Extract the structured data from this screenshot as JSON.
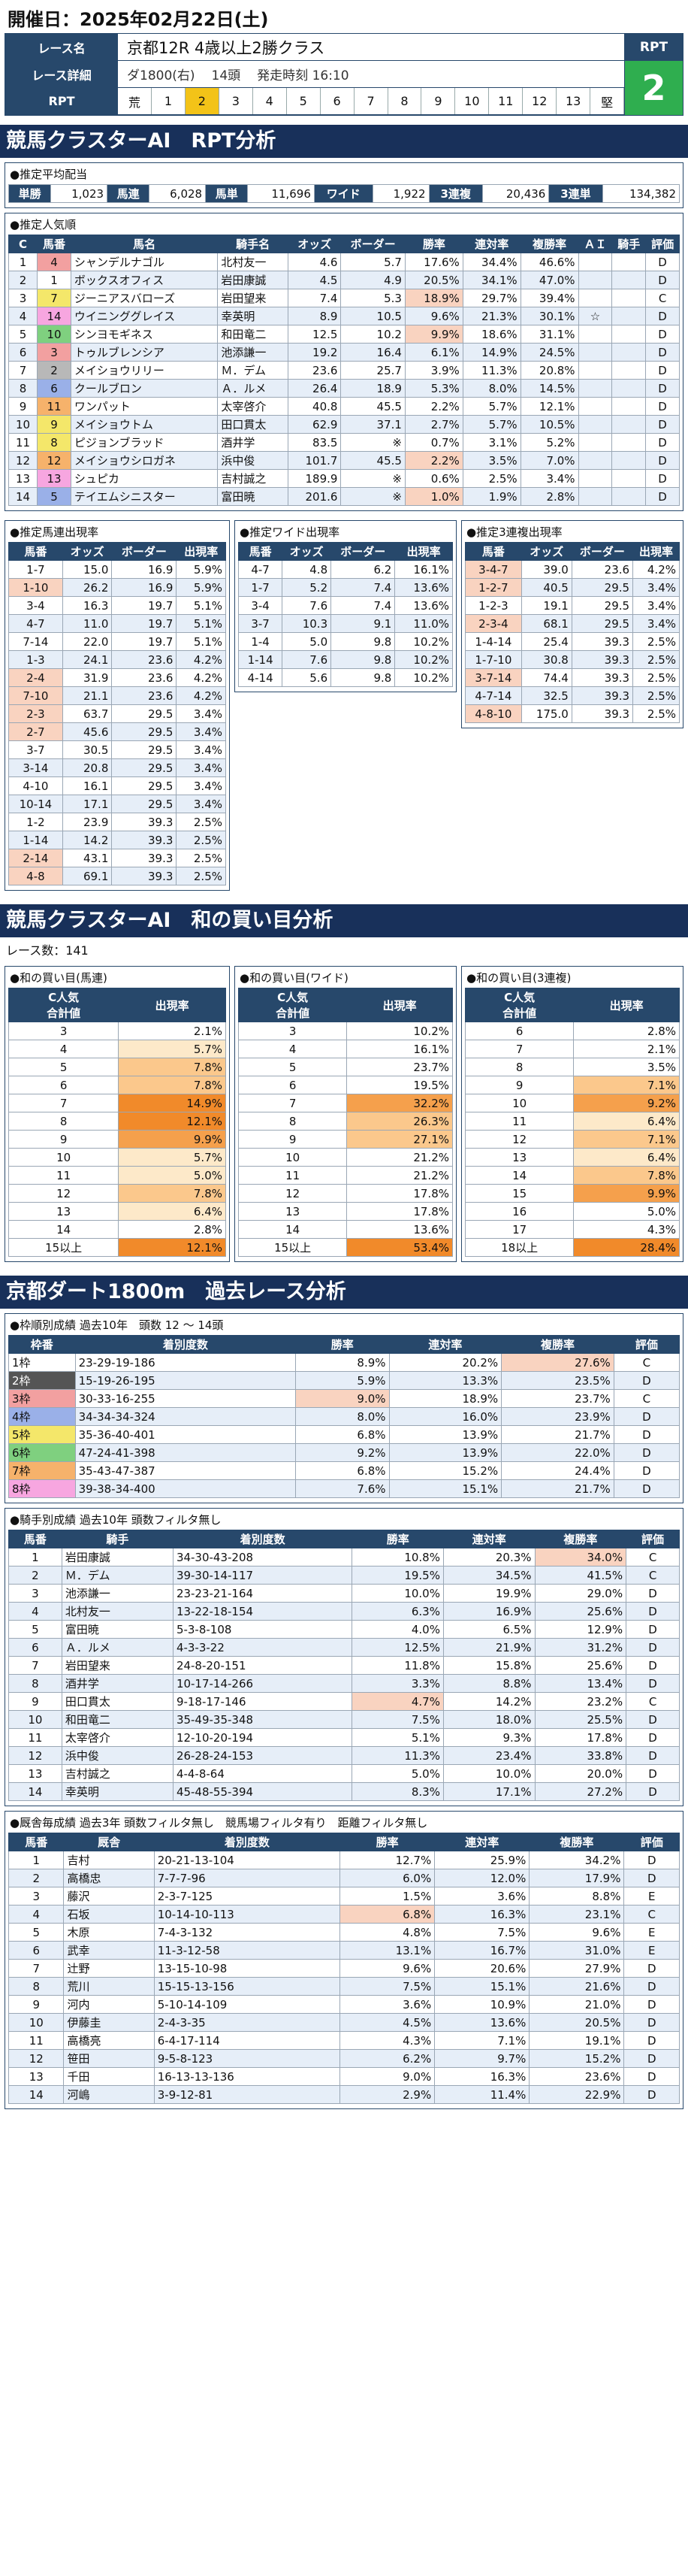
{
  "race": {
    "date": "開催日：2025年02月22日(土)",
    "name_label": "レース名",
    "name": "京都12R 4歳以上2勝クラス",
    "detail_label": "レース詳細",
    "course": "ダ1800(右)",
    "runners": "14頭",
    "start": "発走時刻 16:10",
    "rpt_label": "RPT",
    "rpt_cells": [
      "荒",
      "1",
      "2",
      "3",
      "4",
      "5",
      "6",
      "7",
      "8",
      "9",
      "10",
      "11",
      "12",
      "13",
      "堅"
    ],
    "rpt_active_index": 2,
    "rpt_value": "2"
  },
  "colors": {
    "accent": "#27486b",
    "header": "#18305a",
    "rpt": "#2fae4f",
    "active": "#f3c318"
  },
  "sec1": {
    "title": "競馬クラスターAI　RPT分析"
  },
  "payout": {
    "title": "●推定平均配当",
    "items": [
      {
        "label": "単勝",
        "value": "1,023"
      },
      {
        "label": "馬連",
        "value": "6,028"
      },
      {
        "label": "馬単",
        "value": "11,696"
      },
      {
        "label": "ワイド",
        "value": "1,922"
      },
      {
        "label": "3連複",
        "value": "20,436"
      },
      {
        "label": "3連単",
        "value": "134,382"
      }
    ]
  },
  "popularity": {
    "title": "●推定人気順",
    "headers": [
      "C",
      "馬番",
      "馬名",
      "騎手名",
      "オッズ",
      "ボーダー",
      "勝率",
      "連対率",
      "複勝率",
      "ＡＩ",
      "騎手",
      "評価"
    ],
    "rows": [
      [
        "1",
        "4",
        "シャンデルナゴル",
        "北村友一",
        "4.6",
        "5.7",
        "17.6%",
        "34.4%",
        "46.6%",
        "",
        "",
        "D"
      ],
      [
        "2",
        "1",
        "ボックスオフィス",
        "岩田康誠",
        "4.5",
        "4.9",
        "20.5%",
        "34.1%",
        "47.0%",
        "",
        "",
        "D"
      ],
      [
        "3",
        "7",
        "ジーニアスバローズ",
        "岩田望来",
        "7.4",
        "5.3",
        "18.9%",
        "29.7%",
        "39.4%",
        "",
        "",
        "C"
      ],
      [
        "4",
        "14",
        "ウイニンググレイス",
        "幸英明",
        "8.9",
        "10.5",
        "9.6%",
        "21.3%",
        "30.1%",
        "☆",
        "",
        "D"
      ],
      [
        "5",
        "10",
        "シンヨモギネス",
        "和田竜二",
        "12.5",
        "10.2",
        "9.9%",
        "18.6%",
        "31.1%",
        "",
        "",
        "D"
      ],
      [
        "6",
        "3",
        "トゥルブレンシア",
        "池添謙一",
        "19.2",
        "16.4",
        "6.1%",
        "14.9%",
        "24.5%",
        "",
        "",
        "D"
      ],
      [
        "7",
        "2",
        "メイショウリリー",
        "Ｍ．デム",
        "23.6",
        "25.7",
        "3.9%",
        "11.3%",
        "20.8%",
        "",
        "",
        "D"
      ],
      [
        "8",
        "6",
        "クールブロン",
        "Ａ．ルメ",
        "26.4",
        "18.9",
        "5.3%",
        "8.0%",
        "14.5%",
        "",
        "",
        "D"
      ],
      [
        "9",
        "11",
        "ワンパット",
        "太宰啓介",
        "40.8",
        "45.5",
        "2.2%",
        "5.7%",
        "12.1%",
        "",
        "",
        "D"
      ],
      [
        "10",
        "9",
        "メイショウトム",
        "田口貫太",
        "62.9",
        "37.1",
        "2.7%",
        "5.7%",
        "10.5%",
        "",
        "",
        "D"
      ],
      [
        "11",
        "8",
        "ピジョンブラッド",
        "酒井学",
        "83.5",
        "※",
        "0.7%",
        "3.1%",
        "5.2%",
        "",
        "",
        "D"
      ],
      [
        "12",
        "12",
        "メイショウシロガネ",
        "浜中俊",
        "101.7",
        "45.5",
        "2.2%",
        "3.5%",
        "7.0%",
        "",
        "",
        "D"
      ],
      [
        "13",
        "13",
        "シュピカ",
        "吉村誠之",
        "189.9",
        "※",
        "0.6%",
        "2.5%",
        "3.4%",
        "",
        "",
        "D"
      ],
      [
        "14",
        "5",
        "テイエムシニスター",
        "富田暁",
        "201.6",
        "※",
        "1.0%",
        "1.9%",
        "2.8%",
        "",
        "",
        "D"
      ]
    ]
  },
  "umaren": {
    "title": "●推定馬連出現率",
    "headers": [
      "馬番",
      "オッズ",
      "ボーダー",
      "出現率"
    ],
    "rows": [
      [
        "1-7",
        "15.0",
        "16.9",
        "5.9%"
      ],
      [
        "1-10",
        "26.2",
        "16.9",
        "5.9%"
      ],
      [
        "3-4",
        "16.3",
        "19.7",
        "5.1%"
      ],
      [
        "4-7",
        "11.0",
        "19.7",
        "5.1%"
      ],
      [
        "7-14",
        "22.0",
        "19.7",
        "5.1%"
      ],
      [
        "1-3",
        "24.1",
        "23.6",
        "4.2%"
      ],
      [
        "2-4",
        "31.9",
        "23.6",
        "4.2%"
      ],
      [
        "7-10",
        "21.1",
        "23.6",
        "4.2%"
      ],
      [
        "2-3",
        "63.7",
        "29.5",
        "3.4%"
      ],
      [
        "2-7",
        "45.6",
        "29.5",
        "3.4%"
      ],
      [
        "3-7",
        "30.5",
        "29.5",
        "3.4%"
      ],
      [
        "3-14",
        "20.8",
        "29.5",
        "3.4%"
      ],
      [
        "4-10",
        "16.1",
        "29.5",
        "3.4%"
      ],
      [
        "10-14",
        "17.1",
        "29.5",
        "3.4%"
      ],
      [
        "1-2",
        "23.9",
        "39.3",
        "2.5%"
      ],
      [
        "1-14",
        "14.2",
        "39.3",
        "2.5%"
      ],
      [
        "2-14",
        "43.1",
        "39.3",
        "2.5%"
      ],
      [
        "4-8",
        "69.1",
        "39.3",
        "2.5%"
      ]
    ]
  },
  "wide": {
    "title": "●推定ワイド出現率",
    "headers": [
      "馬番",
      "オッズ",
      "ボーダー",
      "出現率"
    ],
    "rows": [
      [
        "4-7",
        "4.8",
        "6.2",
        "16.1%"
      ],
      [
        "1-7",
        "5.2",
        "7.4",
        "13.6%"
      ],
      [
        "3-4",
        "7.6",
        "7.4",
        "13.6%"
      ],
      [
        "3-7",
        "10.3",
        "9.1",
        "11.0%"
      ],
      [
        "1-4",
        "5.0",
        "9.8",
        "10.2%"
      ],
      [
        "1-14",
        "7.6",
        "9.8",
        "10.2%"
      ],
      [
        "4-14",
        "5.6",
        "9.8",
        "10.2%"
      ]
    ]
  },
  "sanrenpuku": {
    "title": "●推定3連複出現率",
    "headers": [
      "馬番",
      "オッズ",
      "ボーダー",
      "出現率"
    ],
    "rows": [
      [
        "3-4-7",
        "39.0",
        "23.6",
        "4.2%"
      ],
      [
        "1-2-7",
        "40.5",
        "29.5",
        "3.4%"
      ],
      [
        "1-2-3",
        "19.1",
        "29.5",
        "3.4%"
      ],
      [
        "2-3-4",
        "68.1",
        "29.5",
        "3.4%"
      ],
      [
        "1-4-14",
        "25.4",
        "39.3",
        "2.5%"
      ],
      [
        "1-7-10",
        "30.8",
        "39.3",
        "2.5%"
      ],
      [
        "3-7-14",
        "74.4",
        "39.3",
        "2.5%"
      ],
      [
        "4-7-14",
        "32.5",
        "39.3",
        "2.5%"
      ],
      [
        "4-8-10",
        "175.0",
        "39.3",
        "2.5%"
      ]
    ]
  },
  "sec2": {
    "title": "競馬クラスターAI　和の買い目分析",
    "count": "レース数：141"
  },
  "wa_umaren": {
    "title": "●和の買い目(馬連)",
    "headers": [
      "C人気\n合計値",
      "出現率"
    ],
    "rows": [
      [
        "3",
        "2.1%"
      ],
      [
        "4",
        "5.7%"
      ],
      [
        "5",
        "7.8%"
      ],
      [
        "6",
        "7.8%"
      ],
      [
        "7",
        "14.9%"
      ],
      [
        "8",
        "12.1%"
      ],
      [
        "9",
        "9.9%"
      ],
      [
        "10",
        "5.7%"
      ],
      [
        "11",
        "5.0%"
      ],
      [
        "12",
        "7.8%"
      ],
      [
        "13",
        "6.4%"
      ],
      [
        "14",
        "2.8%"
      ],
      [
        "15以上",
        "12.1%"
      ]
    ]
  },
  "wa_wide": {
    "title": "●和の買い目(ワイド)",
    "headers": [
      "C人気\n合計値",
      "出現率"
    ],
    "rows": [
      [
        "3",
        "10.2%"
      ],
      [
        "4",
        "16.1%"
      ],
      [
        "5",
        "23.7%"
      ],
      [
        "6",
        "19.5%"
      ],
      [
        "7",
        "32.2%"
      ],
      [
        "8",
        "26.3%"
      ],
      [
        "9",
        "27.1%"
      ],
      [
        "10",
        "21.2%"
      ],
      [
        "11",
        "21.2%"
      ],
      [
        "12",
        "17.8%"
      ],
      [
        "13",
        "17.8%"
      ],
      [
        "14",
        "13.6%"
      ],
      [
        "15以上",
        "53.4%"
      ]
    ]
  },
  "wa_sanren": {
    "title": "●和の買い目(3連複)",
    "headers": [
      "C人気\n合計値",
      "出現率"
    ],
    "rows": [
      [
        "6",
        "2.8%"
      ],
      [
        "7",
        "2.1%"
      ],
      [
        "8",
        "3.5%"
      ],
      [
        "9",
        "7.1%"
      ],
      [
        "10",
        "9.2%"
      ],
      [
        "11",
        "6.4%"
      ],
      [
        "12",
        "7.1%"
      ],
      [
        "13",
        "6.4%"
      ],
      [
        "14",
        "7.8%"
      ],
      [
        "15",
        "9.9%"
      ],
      [
        "16",
        "5.0%"
      ],
      [
        "17",
        "4.3%"
      ],
      [
        "18以上",
        "28.4%"
      ]
    ]
  },
  "sec3": {
    "title": "京都ダート1800m　過去レース分析"
  },
  "waku": {
    "title": "●枠順別成績 過去10年　頭数 12 ～ 14頭",
    "headers": [
      "枠番",
      "着別度数",
      "勝率",
      "連対率",
      "複勝率",
      "評価"
    ],
    "rows": [
      [
        "1枠",
        "23-29-19-186",
        "8.9%",
        "20.2%",
        "27.6%",
        "C"
      ],
      [
        "2枠",
        "15-19-26-195",
        "5.9%",
        "13.3%",
        "23.5%",
        "D"
      ],
      [
        "3枠",
        "30-33-16-255",
        "9.0%",
        "18.9%",
        "23.7%",
        "C"
      ],
      [
        "4枠",
        "34-34-34-324",
        "8.0%",
        "16.0%",
        "23.9%",
        "D"
      ],
      [
        "5枠",
        "35-36-40-401",
        "6.8%",
        "13.9%",
        "21.7%",
        "D"
      ],
      [
        "6枠",
        "47-24-41-398",
        "9.2%",
        "13.9%",
        "22.0%",
        "D"
      ],
      [
        "7枠",
        "35-43-47-387",
        "6.8%",
        "15.2%",
        "24.4%",
        "D"
      ],
      [
        "8枠",
        "39-38-34-400",
        "7.6%",
        "15.1%",
        "21.7%",
        "D"
      ]
    ]
  },
  "jockey": {
    "title": "●騎手別成績 過去10年 頭数フィルタ無し",
    "headers": [
      "馬番",
      "騎手",
      "着別度数",
      "勝率",
      "連対率",
      "複勝率",
      "評価"
    ],
    "rows": [
      [
        "1",
        "岩田康誠",
        "34-30-43-208",
        "10.8%",
        "20.3%",
        "34.0%",
        "C"
      ],
      [
        "2",
        "Ｍ．デム",
        "39-30-14-117",
        "19.5%",
        "34.5%",
        "41.5%",
        "C"
      ],
      [
        "3",
        "池添謙一",
        "23-23-21-164",
        "10.0%",
        "19.9%",
        "29.0%",
        "D"
      ],
      [
        "4",
        "北村友一",
        "13-22-18-154",
        "6.3%",
        "16.9%",
        "25.6%",
        "D"
      ],
      [
        "5",
        "富田暁",
        "5-3-8-108",
        "4.0%",
        "6.5%",
        "12.9%",
        "D"
      ],
      [
        "6",
        "Ａ．ルメ",
        "4-3-3-22",
        "12.5%",
        "21.9%",
        "31.2%",
        "D"
      ],
      [
        "7",
        "岩田望来",
        "24-8-20-151",
        "11.8%",
        "15.8%",
        "25.6%",
        "D"
      ],
      [
        "8",
        "酒井学",
        "10-17-14-266",
        "3.3%",
        "8.8%",
        "13.4%",
        "D"
      ],
      [
        "9",
        "田口貫太",
        "9-18-17-146",
        "4.7%",
        "14.2%",
        "23.2%",
        "C"
      ],
      [
        "10",
        "和田竜二",
        "35-49-35-348",
        "7.5%",
        "18.0%",
        "25.5%",
        "D"
      ],
      [
        "11",
        "太宰啓介",
        "12-10-20-194",
        "5.1%",
        "9.3%",
        "17.8%",
        "D"
      ],
      [
        "12",
        "浜中俊",
        "26-28-24-153",
        "11.3%",
        "23.4%",
        "33.8%",
        "D"
      ],
      [
        "13",
        "吉村誠之",
        "4-4-8-64",
        "5.0%",
        "10.0%",
        "20.0%",
        "D"
      ],
      [
        "14",
        "幸英明",
        "45-48-55-394",
        "8.3%",
        "17.1%",
        "27.2%",
        "D"
      ]
    ]
  },
  "trainer": {
    "title": "●厩舎毎成績 過去3年 頭数フィルタ無し　競馬場フィルタ有り　距離フィルタ無し",
    "headers": [
      "馬番",
      "厩舎",
      "着別度数",
      "勝率",
      "連対率",
      "複勝率",
      "評価"
    ],
    "rows": [
      [
        "1",
        "吉村",
        "20-21-13-104",
        "12.7%",
        "25.9%",
        "34.2%",
        "D"
      ],
      [
        "2",
        "高橋忠",
        "7-7-7-96",
        "6.0%",
        "12.0%",
        "17.9%",
        "D"
      ],
      [
        "3",
        "藤沢",
        "2-3-7-125",
        "1.5%",
        "3.6%",
        "8.8%",
        "E"
      ],
      [
        "4",
        "石坂",
        "10-14-10-113",
        "6.8%",
        "16.3%",
        "23.1%",
        "C"
      ],
      [
        "5",
        "木原",
        "7-4-3-132",
        "4.8%",
        "7.5%",
        "9.6%",
        "E"
      ],
      [
        "6",
        "武幸",
        "11-3-12-58",
        "13.1%",
        "16.7%",
        "31.0%",
        "E"
      ],
      [
        "7",
        "辻野",
        "13-15-10-98",
        "9.6%",
        "20.6%",
        "27.9%",
        "D"
      ],
      [
        "8",
        "荒川",
        "15-15-13-156",
        "7.5%",
        "15.1%",
        "21.6%",
        "D"
      ],
      [
        "9",
        "河内",
        "5-10-14-109",
        "3.6%",
        "10.9%",
        "21.0%",
        "D"
      ],
      [
        "10",
        "伊藤圭",
        "2-4-3-35",
        "4.5%",
        "13.6%",
        "20.5%",
        "D"
      ],
      [
        "11",
        "高橋亮",
        "6-4-17-114",
        "4.3%",
        "7.1%",
        "19.1%",
        "D"
      ],
      [
        "12",
        "笹田",
        "9-5-8-123",
        "6.2%",
        "9.7%",
        "15.2%",
        "D"
      ],
      [
        "13",
        "千田",
        "16-13-13-136",
        "9.0%",
        "16.3%",
        "23.6%",
        "D"
      ],
      [
        "14",
        "河嶋",
        "3-9-12-81",
        "2.9%",
        "11.4%",
        "22.9%",
        "D"
      ]
    ]
  }
}
